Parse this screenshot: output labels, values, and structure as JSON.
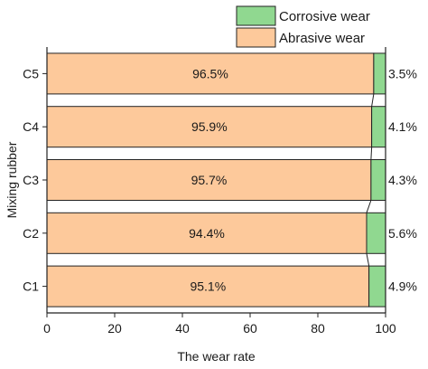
{
  "chart_data": {
    "type": "bar",
    "orientation": "horizontal",
    "stacked": true,
    "title": "",
    "xlabel": "The wear rate",
    "ylabel": "Mixing rubber",
    "xlim": [
      0,
      100
    ],
    "xticks": [
      "0",
      "20",
      "40",
      "60",
      "80",
      "100"
    ],
    "categories": [
      "C5",
      "C4",
      "C3",
      "C2",
      "C1"
    ],
    "series": [
      {
        "name": "Abrasive wear",
        "color": "#FDC99B",
        "values": [
          96.5,
          95.9,
          95.7,
          94.4,
          95.1
        ],
        "labels": [
          "96.5%",
          "95.9%",
          "95.7%",
          "94.4%",
          "95.1%"
        ]
      },
      {
        "name": "Corrosive wear",
        "color": "#90D890",
        "values": [
          3.5,
          4.1,
          4.3,
          5.6,
          4.9
        ],
        "labels": [
          "3.5%",
          "4.1%",
          "4.3%",
          "5.6%",
          "4.9%"
        ]
      }
    ],
    "legend_position": "top-right",
    "grid": false
  }
}
